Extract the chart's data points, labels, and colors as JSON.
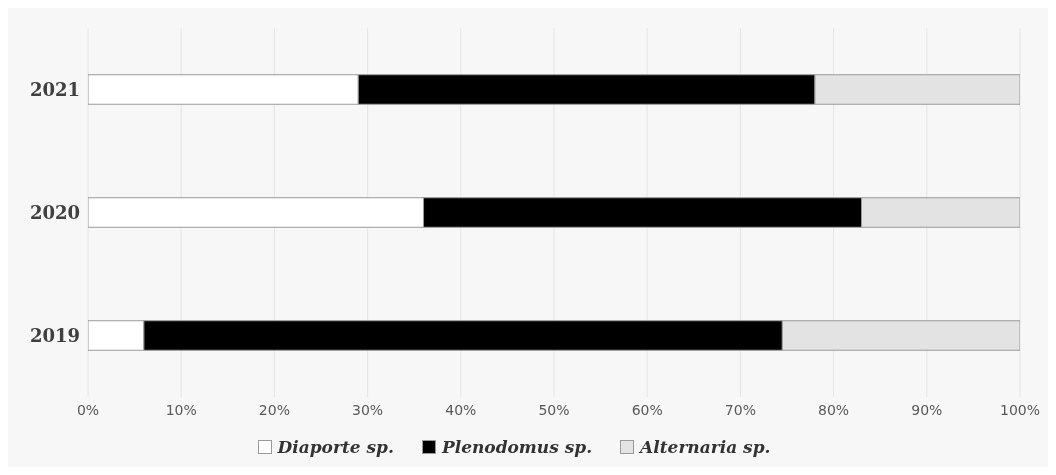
{
  "chart_data": {
    "type": "bar",
    "orientation": "horizontal",
    "stacked": true,
    "categories": [
      "2021",
      "2020",
      "2019"
    ],
    "series": [
      {
        "name": "Diaporte sp.",
        "color": "#ffffff",
        "values": [
          29,
          36,
          6
        ]
      },
      {
        "name": "Plenodomus sp.",
        "color": "#000000",
        "values": [
          49,
          47,
          68.5
        ]
      },
      {
        "name": "Alternaria sp.",
        "color": "#e3e3e3",
        "values": [
          22,
          17,
          25.5
        ]
      }
    ],
    "xlim": [
      0,
      100
    ],
    "xticks": [
      {
        "value": 0,
        "label": "0%"
      },
      {
        "value": 10,
        "label": "10%"
      },
      {
        "value": 20,
        "label": "20%"
      },
      {
        "value": 30,
        "label": "30%"
      },
      {
        "value": 40,
        "label": "40%"
      },
      {
        "value": 50,
        "label": "50%"
      },
      {
        "value": 60,
        "label": "60%"
      },
      {
        "value": 70,
        "label": "70%"
      },
      {
        "value": 80,
        "label": "80%"
      },
      {
        "value": 90,
        "label": "90%"
      },
      {
        "value": 100,
        "label": "100%"
      }
    ],
    "grid": "x",
    "legend": "bottom"
  }
}
